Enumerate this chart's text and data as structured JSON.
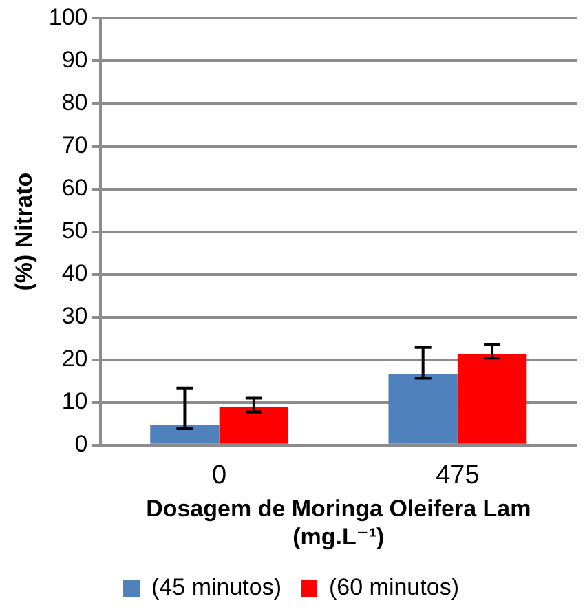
{
  "chart_data": {
    "type": "bar",
    "xlabel": "Dosagem de Moringa Oleifera Lam (mg.L⁻¹)",
    "ylabel": "(%) Nitrato",
    "categories": [
      "0",
      "475"
    ],
    "series": [
      {
        "name": "(45 minutos)",
        "color": "#4f81bd",
        "values": [
          4.7,
          16.7
        ],
        "errors": [
          [
            4.0,
            13.4
          ],
          [
            15.7,
            22.9
          ]
        ]
      },
      {
        "name": "(60 minutos)",
        "color": "#ff0000",
        "values": [
          8.9,
          21.3
        ],
        "errors": [
          [
            7.8,
            11.0
          ],
          [
            20.4,
            23.5
          ]
        ]
      }
    ],
    "ylim": [
      0,
      100
    ],
    "yticks": [
      0,
      10,
      20,
      30,
      40,
      50,
      60,
      70,
      80,
      90,
      100
    ],
    "grid": "y",
    "legend": "bottom"
  }
}
